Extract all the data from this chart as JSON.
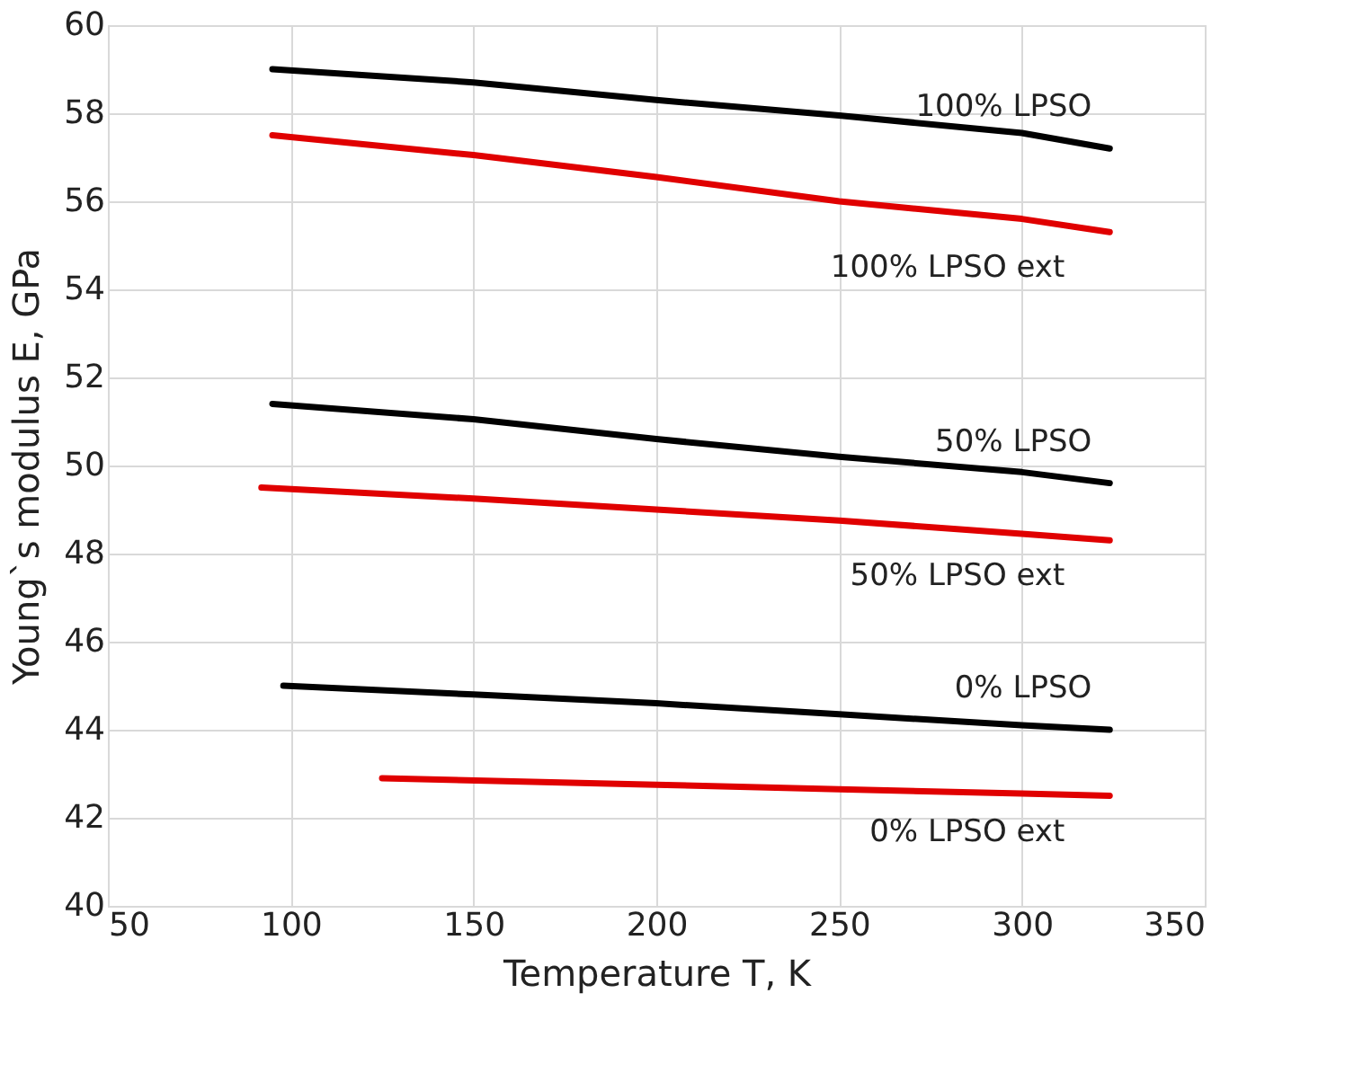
{
  "chart_data": {
    "type": "line",
    "xlabel": "Temperature T, K",
    "ylabel": "Young`s modulus E, GPa",
    "xlim": [
      50,
      350
    ],
    "xticks": [
      50,
      100,
      150,
      200,
      250,
      300,
      350
    ],
    "ylim": [
      40,
      60
    ],
    "yticks": [
      40,
      42,
      44,
      46,
      48,
      50,
      52,
      54,
      56,
      58,
      60
    ],
    "grid": true,
    "line_style": "solid",
    "series": [
      {
        "name": "100% LPSO",
        "color": "#000000",
        "x": [
          95,
          150,
          200,
          250,
          300,
          324
        ],
        "values": [
          59.0,
          58.7,
          58.3,
          57.95,
          57.55,
          57.2
        ]
      },
      {
        "name": "100% LPSO ext",
        "color": "#e00000",
        "x": [
          95,
          150,
          200,
          250,
          300,
          324
        ],
        "values": [
          57.5,
          57.05,
          56.55,
          56.0,
          55.6,
          55.3
        ]
      },
      {
        "name": "50% LPSO",
        "color": "#000000",
        "x": [
          95,
          150,
          200,
          250,
          300,
          324
        ],
        "values": [
          51.4,
          51.05,
          50.6,
          50.2,
          49.85,
          49.6
        ]
      },
      {
        "name": "50% LPSO ext",
        "color": "#e00000",
        "x": [
          92,
          150,
          200,
          250,
          300,
          324
        ],
        "values": [
          49.5,
          49.25,
          49.0,
          48.75,
          48.45,
          48.3
        ]
      },
      {
        "name": "0% LPSO",
        "color": "#000000",
        "x": [
          98,
          150,
          200,
          250,
          300,
          324
        ],
        "values": [
          45.0,
          44.8,
          44.6,
          44.35,
          44.1,
          44.0
        ]
      },
      {
        "name": "0% LPSO ext",
        "color": "#e00000",
        "x": [
          125,
          200,
          250,
          300,
          324
        ],
        "values": [
          42.9,
          42.75,
          42.65,
          42.55,
          42.5
        ]
      }
    ]
  }
}
